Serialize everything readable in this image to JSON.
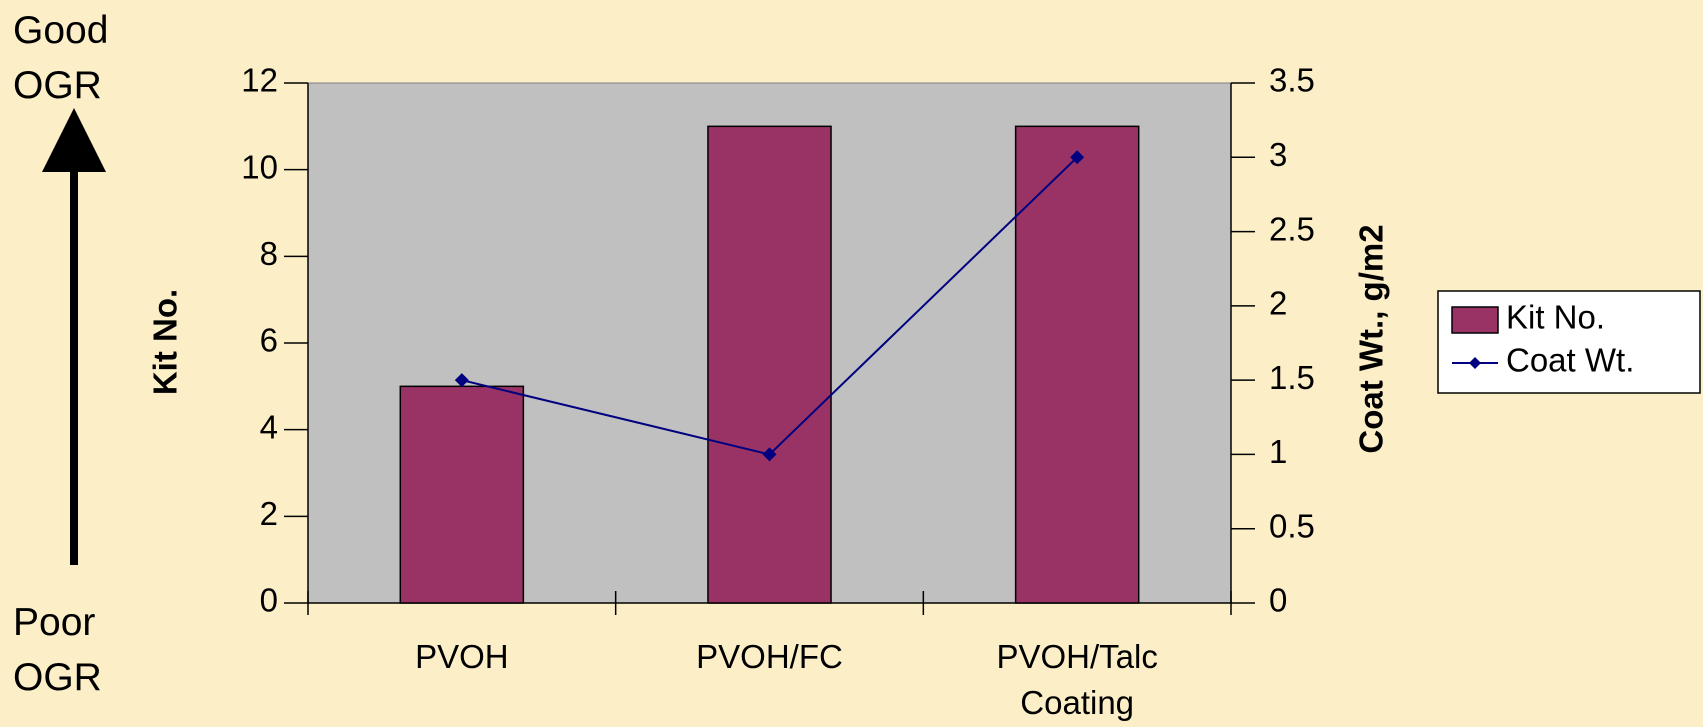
{
  "chart_data": {
    "type": "bar",
    "annotations": [
      "Good OGR",
      "Poor OGR"
    ],
    "categories": [
      "PVOH",
      "PVOH/FC",
      "PVOH/Talc Coating"
    ],
    "series": [
      {
        "name": "Kit No.",
        "type": "bar",
        "color": "#993366",
        "values": [
          5,
          11,
          11
        ]
      },
      {
        "name": "Coat Wt.",
        "type": "line",
        "axis": "y2",
        "color": "#000080",
        "values": [
          1.5,
          1,
          3
        ]
      }
    ],
    "ylabel": "Kit No.",
    "y2label": "Coat Wt., g/m2",
    "ylim": [
      0,
      12
    ],
    "yticks": [
      0,
      2,
      4,
      6,
      8,
      10,
      12
    ],
    "y2lim": [
      0,
      3.5
    ],
    "y2ticks": [
      0,
      0.5,
      1,
      1.5,
      2,
      2.5,
      3,
      3.5
    ],
    "legend": "right"
  }
}
